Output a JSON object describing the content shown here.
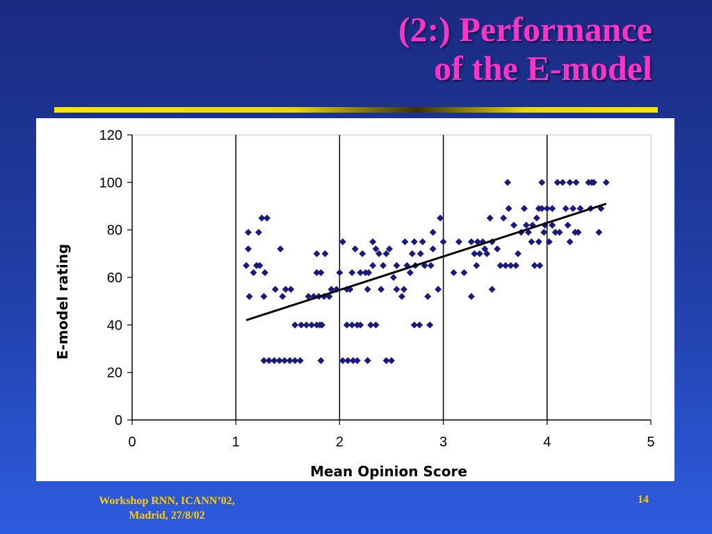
{
  "slide": {
    "title_line1": "(2:) Performance",
    "title_line2": "of the E-model",
    "footer_line1": "Workshop RNN, ICANN’02,",
    "footer_line2": "Madrid, 27/8/02",
    "page_number": "14"
  },
  "colors": {
    "title": "#ff33cc",
    "footer": "#ffcc00",
    "points": "#1a1a7a",
    "trendline": "#000000"
  },
  "chart_data": {
    "type": "scatter",
    "xlabel": "Mean Opinion Score",
    "ylabel": "E-model rating",
    "xlim": [
      0,
      5
    ],
    "ylim": [
      0,
      120
    ],
    "xticks": [
      "0",
      "1",
      "2",
      "3",
      "4",
      "5"
    ],
    "yticks": [
      "0",
      "20",
      "40",
      "60",
      "80",
      "100",
      "120"
    ],
    "vertical_gridlines_at": [
      1,
      2,
      3,
      4
    ],
    "trendline": {
      "x": [
        1.1,
        4.57
      ],
      "y": [
        42,
        91
      ]
    },
    "points": [
      [
        1.1,
        65
      ],
      [
        1.12,
        79
      ],
      [
        1.12,
        72
      ],
      [
        1.13,
        52
      ],
      [
        1.17,
        62
      ],
      [
        1.2,
        65
      ],
      [
        1.22,
        79
      ],
      [
        1.23,
        65
      ],
      [
        1.25,
        85
      ],
      [
        1.28,
        62
      ],
      [
        1.3,
        85
      ],
      [
        1.27,
        52
      ],
      [
        1.27,
        25
      ],
      [
        1.32,
        25
      ],
      [
        1.37,
        25
      ],
      [
        1.42,
        25
      ],
      [
        1.47,
        25
      ],
      [
        1.52,
        25
      ],
      [
        1.57,
        25
      ],
      [
        1.62,
        25
      ],
      [
        1.38,
        55
      ],
      [
        1.43,
        72
      ],
      [
        1.45,
        52
      ],
      [
        1.48,
        55
      ],
      [
        1.53,
        55
      ],
      [
        1.57,
        40
      ],
      [
        1.63,
        40
      ],
      [
        1.68,
        40
      ],
      [
        1.73,
        40
      ],
      [
        1.78,
        40
      ],
      [
        1.83,
        40
      ],
      [
        1.81,
        40
      ],
      [
        1.7,
        52
      ],
      [
        1.75,
        52
      ],
      [
        1.8,
        52
      ],
      [
        1.85,
        52
      ],
      [
        1.9,
        52
      ],
      [
        1.78,
        62
      ],
      [
        1.82,
        62
      ],
      [
        1.78,
        70
      ],
      [
        1.86,
        70
      ],
      [
        1.82,
        25
      ],
      [
        1.92,
        55
      ],
      [
        1.97,
        55
      ],
      [
        2.0,
        62
      ],
      [
        2.03,
        75
      ],
      [
        2.07,
        55
      ],
      [
        2.1,
        55
      ],
      [
        2.12,
        62
      ],
      [
        2.15,
        72
      ],
      [
        2.2,
        62
      ],
      [
        2.25,
        62
      ],
      [
        2.28,
        62
      ],
      [
        2.03,
        25
      ],
      [
        2.08,
        25
      ],
      [
        2.13,
        25
      ],
      [
        2.17,
        25
      ],
      [
        2.27,
        25
      ],
      [
        2.45,
        25
      ],
      [
        2.5,
        25
      ],
      [
        2.07,
        40
      ],
      [
        2.12,
        40
      ],
      [
        2.17,
        40
      ],
      [
        2.2,
        40
      ],
      [
        2.3,
        40
      ],
      [
        2.35,
        40
      ],
      [
        2.22,
        70
      ],
      [
        2.27,
        55
      ],
      [
        2.32,
        65
      ],
      [
        2.32,
        75
      ],
      [
        2.35,
        72
      ],
      [
        2.38,
        70
      ],
      [
        2.4,
        55
      ],
      [
        2.42,
        65
      ],
      [
        2.45,
        70
      ],
      [
        2.48,
        72
      ],
      [
        2.52,
        60
      ],
      [
        2.55,
        65
      ],
      [
        2.55,
        55
      ],
      [
        2.6,
        52
      ],
      [
        2.62,
        55
      ],
      [
        2.63,
        75
      ],
      [
        2.65,
        65
      ],
      [
        2.68,
        62
      ],
      [
        2.7,
        70
      ],
      [
        2.72,
        75
      ],
      [
        2.73,
        65
      ],
      [
        2.78,
        70
      ],
      [
        2.72,
        40
      ],
      [
        2.77,
        40
      ],
      [
        2.87,
        40
      ],
      [
        2.8,
        75
      ],
      [
        2.82,
        65
      ],
      [
        2.85,
        52
      ],
      [
        2.88,
        65
      ],
      [
        2.9,
        72
      ],
      [
        2.9,
        79
      ],
      [
        2.95,
        55
      ],
      [
        2.97,
        85
      ],
      [
        3.0,
        75
      ],
      [
        3.1,
        62
      ],
      [
        3.15,
        75
      ],
      [
        3.2,
        62
      ],
      [
        3.27,
        75
      ],
      [
        3.27,
        52
      ],
      [
        3.3,
        70
      ],
      [
        3.32,
        65
      ],
      [
        3.33,
        75
      ],
      [
        3.35,
        70
      ],
      [
        3.38,
        75
      ],
      [
        3.4,
        72
      ],
      [
        3.42,
        70
      ],
      [
        3.45,
        85
      ],
      [
        3.47,
        75
      ],
      [
        3.47,
        55
      ],
      [
        3.52,
        72
      ],
      [
        3.55,
        65
      ],
      [
        3.58,
        85
      ],
      [
        3.6,
        65
      ],
      [
        3.62,
        100
      ],
      [
        3.63,
        89
      ],
      [
        3.65,
        65
      ],
      [
        3.68,
        82
      ],
      [
        3.7,
        65
      ],
      [
        3.72,
        70
      ],
      [
        3.75,
        79
      ],
      [
        3.78,
        89
      ],
      [
        3.8,
        82
      ],
      [
        3.82,
        79
      ],
      [
        3.85,
        75
      ],
      [
        3.86,
        82
      ],
      [
        3.88,
        65
      ],
      [
        3.9,
        85
      ],
      [
        3.92,
        89
      ],
      [
        3.92,
        75
      ],
      [
        3.93,
        65
      ],
      [
        3.95,
        100
      ],
      [
        3.95,
        89
      ],
      [
        3.97,
        79
      ],
      [
        3.98,
        82
      ],
      [
        4.0,
        89
      ],
      [
        4.02,
        75
      ],
      [
        4.05,
        89
      ],
      [
        4.05,
        82
      ],
      [
        4.08,
        79
      ],
      [
        4.1,
        100
      ],
      [
        4.12,
        79
      ],
      [
        4.15,
        100
      ],
      [
        4.18,
        89
      ],
      [
        4.2,
        82
      ],
      [
        4.22,
        75
      ],
      [
        4.22,
        100
      ],
      [
        4.25,
        89
      ],
      [
        4.27,
        79
      ],
      [
        4.28,
        100
      ],
      [
        4.3,
        79
      ],
      [
        4.32,
        89
      ],
      [
        4.4,
        100
      ],
      [
        4.42,
        89
      ],
      [
        4.43,
        100
      ],
      [
        4.45,
        100
      ],
      [
        4.5,
        79
      ],
      [
        4.52,
        89
      ],
      [
        4.57,
        100
      ]
    ]
  }
}
